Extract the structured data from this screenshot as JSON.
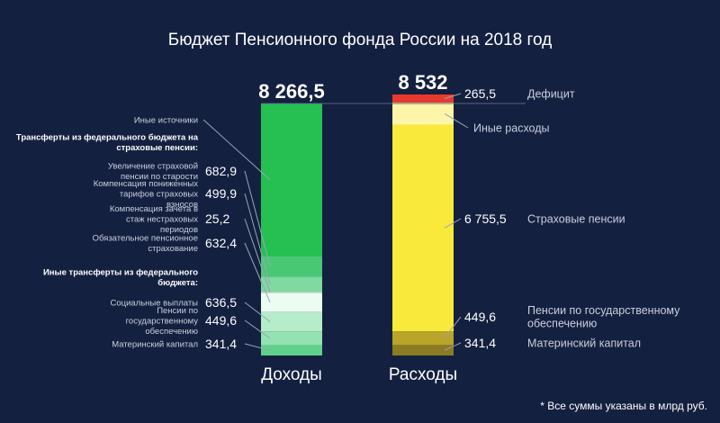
{
  "chart_data": {
    "type": "bar",
    "title": "Бюджет Пенсионного фонда России на 2018 год",
    "footnote": "* Все суммы указаны в млрд руб.",
    "colors": {
      "background": "#142040",
      "text": "#ffffff",
      "subtext": "#c8cfdd",
      "leader": "#9aa4b8"
    },
    "columns": [
      {
        "name": "Доходы",
        "total_label": "8 266,5",
        "total": 8266.5,
        "segments_top_to_bottom": [
          {
            "label": "Иные источники",
            "value": null,
            "value_label": "",
            "color": "#25c051"
          },
          {
            "label": "Увеличение страховой пенсии по старости",
            "value": 682.9,
            "value_label": "682,9",
            "color": "#49c874",
            "group": "transfers_insurance"
          },
          {
            "label": "Компенсация пониженных тарифов страховых взносов",
            "value": 499.9,
            "value_label": "499,9",
            "color": "#7fd9a0",
            "group": "transfers_insurance"
          },
          {
            "label": "Компенсация зачета в стаж нестраховых периодов",
            "value": 25.2,
            "value_label": "25,2",
            "color": "#c6f0d6",
            "group": "transfers_insurance"
          },
          {
            "label": "Обязательное пенсионное страхование",
            "value": 632.4,
            "value_label": "632,4",
            "color": "#edfcf2",
            "group": "transfers_insurance"
          },
          {
            "label": "Социальные выплаты",
            "value": 636.5,
            "value_label": "636,5",
            "color": "#b6ecc9",
            "group": "transfers_other"
          },
          {
            "label": "Пенсии по государственному обеспечению",
            "value": 449.6,
            "value_label": "449,6",
            "color": "#94e2b1",
            "group": "transfers_other"
          },
          {
            "label": "Материнский капитал",
            "value": 341.4,
            "value_label": "341,4",
            "color": "#5fd18b",
            "group": "transfers_other"
          }
        ],
        "group_headers": {
          "transfers_insurance": "Трансферты из федерального бюджета на страховые пенсии:",
          "transfers_other": "Иные трансферты из федерального бюджета:"
        }
      },
      {
        "name": "Расходы",
        "total_label": "8 532",
        "total": 8532,
        "segments_top_to_bottom": [
          {
            "label": "Дефицит",
            "value": 265.5,
            "value_label": "265,5",
            "color": "#e83a2c"
          },
          {
            "label": "Иные расходы",
            "value": null,
            "value_label": "",
            "color": "#fdf5a8"
          },
          {
            "label": "Страховые пенсии",
            "value": 6755.5,
            "value_label": "6 755,5",
            "color": "#f8e93a"
          },
          {
            "label": "Пенсии по государственному обеспечению",
            "value": 449.6,
            "value_label": "449,6",
            "color": "#b9a52a"
          },
          {
            "label": "Материнский капитал",
            "value": 341.4,
            "value_label": "341,4",
            "color": "#8c7b22"
          }
        ]
      }
    ]
  }
}
